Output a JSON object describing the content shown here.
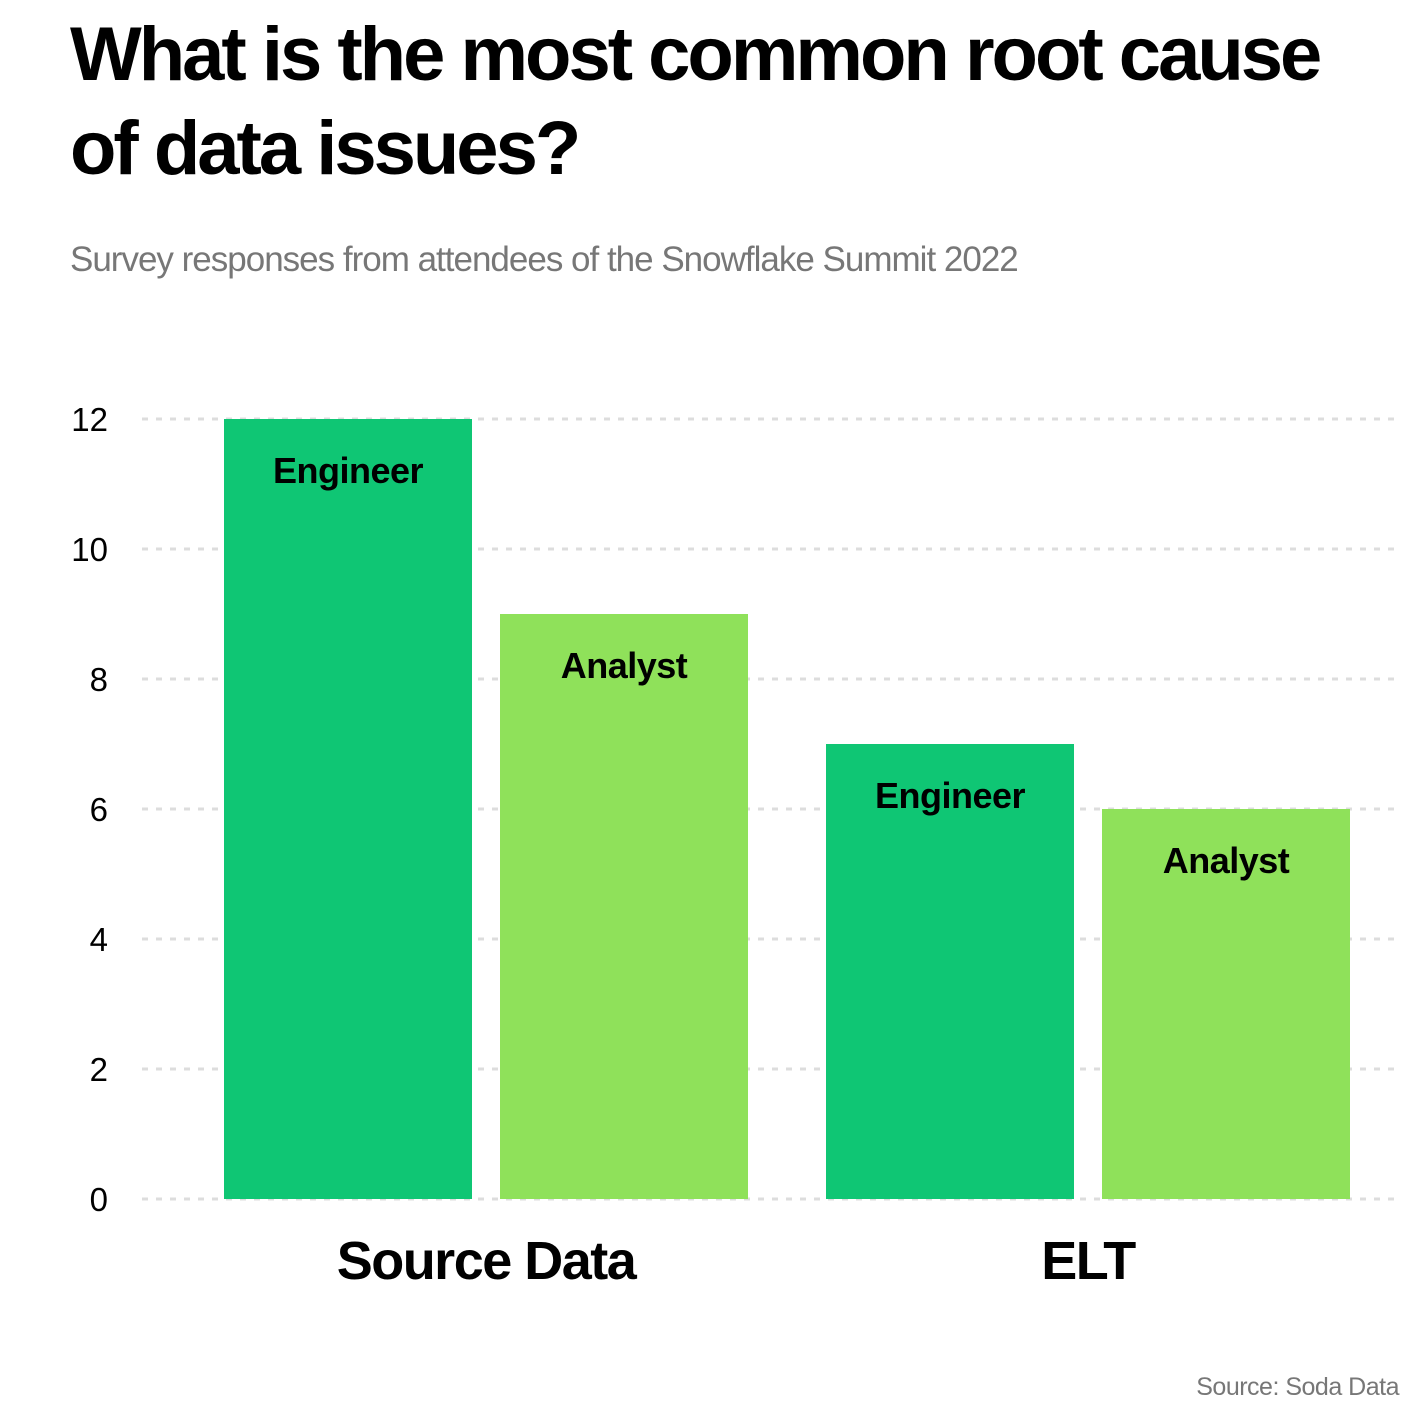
{
  "title": "What is the most common root cause of data issues?",
  "subtitle": "Survey responses from attendees of the Snowflake Summit 2022",
  "source": "Source: Soda Data",
  "colors": {
    "engineer": "#0fc674",
    "analyst": "#8fe15a",
    "grid": "#dddddd",
    "text": "#000000",
    "muted": "#777777"
  },
  "chart_data": {
    "type": "bar",
    "title": "What is the most common root cause of data issues?",
    "subtitle": "Survey responses from attendees of the Snowflake Summit 2022",
    "categories": [
      "Source Data",
      "ELT"
    ],
    "series": [
      {
        "name": "Engineer",
        "values": [
          12,
          7
        ]
      },
      {
        "name": "Analyst",
        "values": [
          9,
          6
        ]
      }
    ],
    "yticks": [
      "0",
      "2",
      "4",
      "6",
      "8",
      "10",
      "12"
    ],
    "ylim": [
      0,
      12
    ],
    "xlabel": "",
    "ylabel": "",
    "grid": true,
    "legend": "none",
    "labels_inside_bars": true
  }
}
